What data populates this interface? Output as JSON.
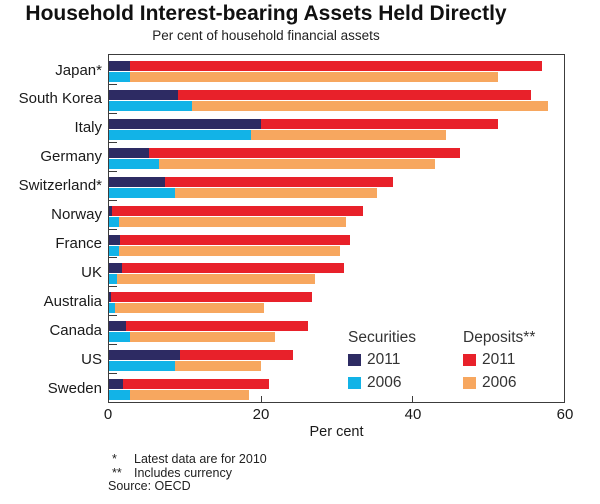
{
  "header": {
    "title": "Household Interest-bearing Assets Held Directly",
    "subtitle": "Per cent of household financial assets"
  },
  "chart_data": {
    "type": "bar",
    "orientation": "horizontal",
    "stacked": true,
    "title": "Household Interest-bearing Assets Held Directly",
    "subtitle": "Per cent of household financial assets",
    "xlabel": "Per cent",
    "xlim": [
      0,
      60
    ],
    "xtick_values": [
      0,
      20,
      40,
      60
    ],
    "grid": false,
    "legend_position": "inside-lower-right",
    "categories": [
      "Japan*",
      "South Korea",
      "Italy",
      "Germany",
      "Switzerland*",
      "Norway",
      "France",
      "UK",
      "Australia",
      "Canada",
      "US",
      "Sweden"
    ],
    "series": [
      {
        "name": "Securities 2011",
        "row": "2011",
        "color": "#2d2b63",
        "values": [
          2.8,
          9.1,
          20.1,
          5.3,
          7.4,
          0.4,
          1.5,
          1.7,
          0.3,
          2.3,
          9.4,
          1.9
        ]
      },
      {
        "name": "Deposits 2011",
        "row": "2011",
        "color": "#e8212a",
        "values": [
          54.3,
          46.6,
          31.2,
          41.0,
          30.1,
          33.1,
          30.3,
          29.3,
          26.5,
          23.9,
          14.9,
          19.2
        ]
      },
      {
        "name": "Securities 2006",
        "row": "2006",
        "color": "#12b3e7",
        "values": [
          2.8,
          10.9,
          18.7,
          6.6,
          8.7,
          1.3,
          1.3,
          1.0,
          0.8,
          2.8,
          8.7,
          2.8
        ]
      },
      {
        "name": "Deposits 2006",
        "row": "2006",
        "color": "#f7a75f",
        "values": [
          48.5,
          47.0,
          25.8,
          36.4,
          26.6,
          29.9,
          29.2,
          26.1,
          19.6,
          19.1,
          11.4,
          15.6
        ]
      }
    ],
    "totals_2011": [
      57.1,
      55.7,
      51.3,
      46.3,
      37.5,
      33.5,
      31.8,
      31.0,
      26.8,
      26.2,
      24.3,
      21.1
    ],
    "totals_2006": [
      51.3,
      57.9,
      44.5,
      43.0,
      35.3,
      31.2,
      30.5,
      27.1,
      20.4,
      21.9,
      20.1,
      18.4
    ]
  },
  "axis": {
    "ticks": [
      "0",
      "20",
      "40",
      "60"
    ],
    "xlabel": "Per cent"
  },
  "legend": {
    "col1": {
      "header": "Securities",
      "items": [
        {
          "label": "2011",
          "color": "#2d2b63"
        },
        {
          "label": "2006",
          "color": "#12b3e7"
        }
      ]
    },
    "col2": {
      "header": "Deposits**",
      "items": [
        {
          "label": "2011",
          "color": "#e8212a"
        },
        {
          "label": "2006",
          "color": "#f7a75f"
        }
      ]
    }
  },
  "footnotes": [
    {
      "marker": "*",
      "text": "Latest data are for 2010"
    },
    {
      "marker": "**",
      "text": "Includes currency"
    }
  ],
  "source": "Source: OECD",
  "colors": {
    "securities_2011": "#2d2b63",
    "securities_2006": "#12b3e7",
    "deposits_2011": "#e8212a",
    "deposits_2006": "#f7a75f",
    "frame": "#3c3c3c"
  }
}
